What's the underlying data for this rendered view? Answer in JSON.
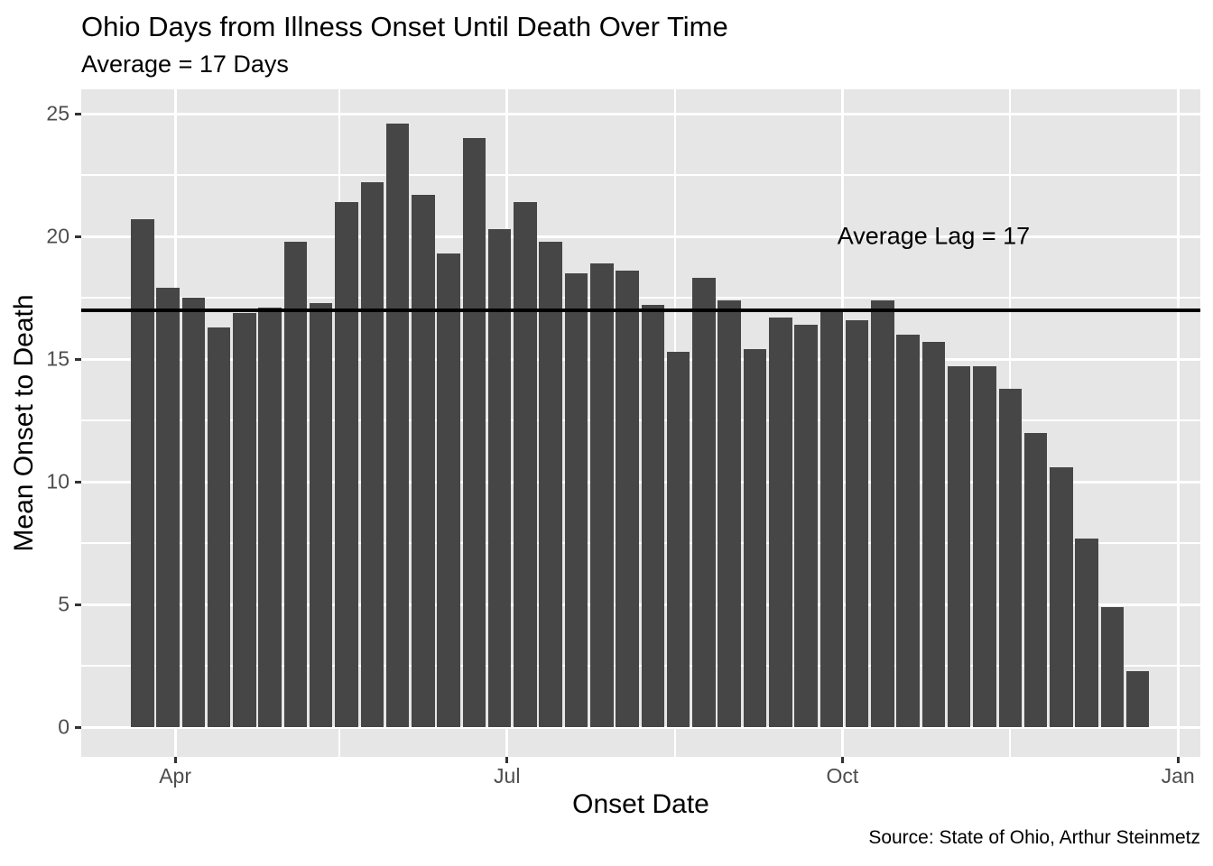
{
  "header": {
    "title": "Ohio Days from Illness Onset Until Death Over Time",
    "subtitle": "Average = 17 Days"
  },
  "caption": "Source: State of Ohio, Arthur Steinmetz",
  "chart_data": {
    "type": "bar",
    "title": "Ohio Days from Illness Onset Until Death Over Time",
    "subtitle": "Average = 17 Days",
    "xlabel": "Onset Date",
    "ylabel": "Mean Onset to Death",
    "x_description": "One bar per onset week, late March through late December",
    "values": [
      20.7,
      17.9,
      17.5,
      16.3,
      16.9,
      17.1,
      19.8,
      17.3,
      21.4,
      22.2,
      24.6,
      21.7,
      19.3,
      24.0,
      20.3,
      21.4,
      19.8,
      18.5,
      18.9,
      18.6,
      17.2,
      15.3,
      18.3,
      17.4,
      15.4,
      16.7,
      16.4,
      17.0,
      16.6,
      17.4,
      16.0,
      15.7,
      14.7,
      14.7,
      13.8,
      12.0,
      10.6,
      7.7,
      4.9,
      2.3
    ],
    "n_bars": 40,
    "y_ticks": [
      0,
      5,
      10,
      15,
      20,
      25
    ],
    "y_minor_ticks": [
      2.5,
      7.5,
      12.5,
      17.5,
      22.5
    ],
    "ylim": [
      -1.2,
      26
    ],
    "x_ticks": [
      {
        "label": "Apr",
        "day": 9
      },
      {
        "label": "Jul",
        "day": 100
      },
      {
        "label": "Oct",
        "day": 192
      },
      {
        "label": "Jan",
        "day": 284
      }
    ],
    "x_minor_days": [
      54,
      146,
      238
    ],
    "hline": {
      "value": 17,
      "label": "Average Lag = 17",
      "label_x_day": 217,
      "label_y": 20
    },
    "grid": true,
    "legend": "none",
    "colors": {
      "bar": "#464646",
      "panel_bg": "#E6E6E6",
      "grid": "#FFFFFF",
      "hline": "#000000",
      "tick_label": "#4D4D4D",
      "text": "#000000",
      "page_bg": "#FFFFFF"
    }
  }
}
